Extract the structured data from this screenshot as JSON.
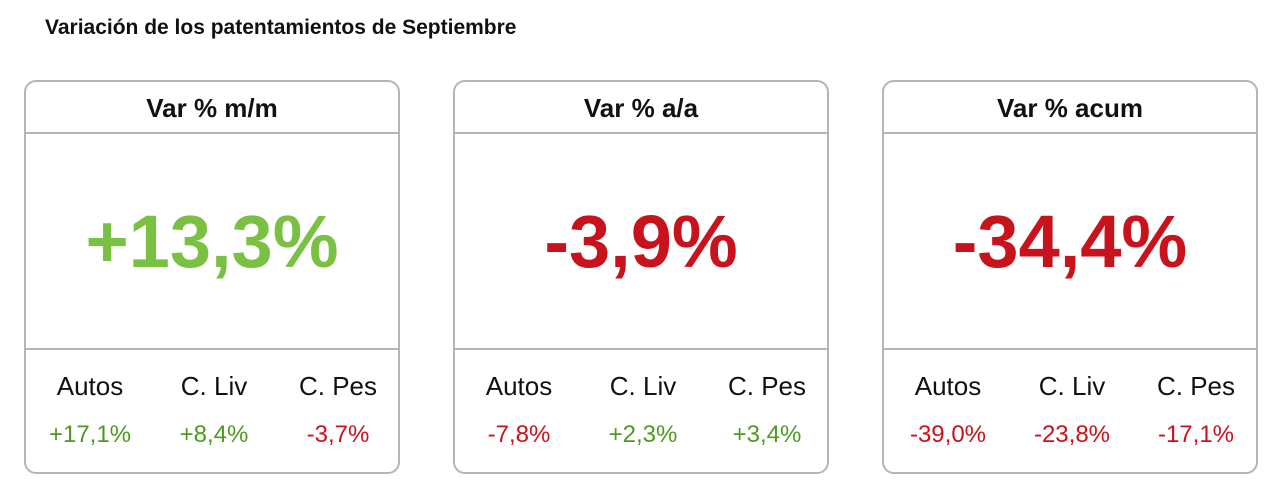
{
  "title": "Variación de los patentamientos de Septiembre",
  "cards": [
    {
      "header": "Var % m/m",
      "value": "+13,3%",
      "color": "#7ac143",
      "items": [
        {
          "label": "Autos",
          "value": "+17,1%",
          "color": "#4e9a1e"
        },
        {
          "label": "C. Liv",
          "value": "+8,4%",
          "color": "#4e9a1e"
        },
        {
          "label": "C. Pes",
          "value": "-3,7%",
          "color": "#c8121c"
        }
      ]
    },
    {
      "header": "Var % a/a",
      "value": "-3,9%",
      "color": "#c8121c",
      "items": [
        {
          "label": "Autos",
          "value": "-7,8%",
          "color": "#c8121c"
        },
        {
          "label": "C. Liv",
          "value": "+2,3%",
          "color": "#4e9a1e"
        },
        {
          "label": "C. Pes",
          "value": "+3,4%",
          "color": "#4e9a1e"
        }
      ]
    },
    {
      "header": "Var % acum",
      "value": "-34,4%",
      "color": "#c8121c",
      "items": [
        {
          "label": "Autos",
          "value": "-39,0%",
          "color": "#c8121c"
        },
        {
          "label": "C. Liv",
          "value": "-23,8%",
          "color": "#c8121c"
        },
        {
          "label": "C. Pes",
          "value": "-17,1%",
          "color": "#c8121c"
        }
      ]
    }
  ]
}
